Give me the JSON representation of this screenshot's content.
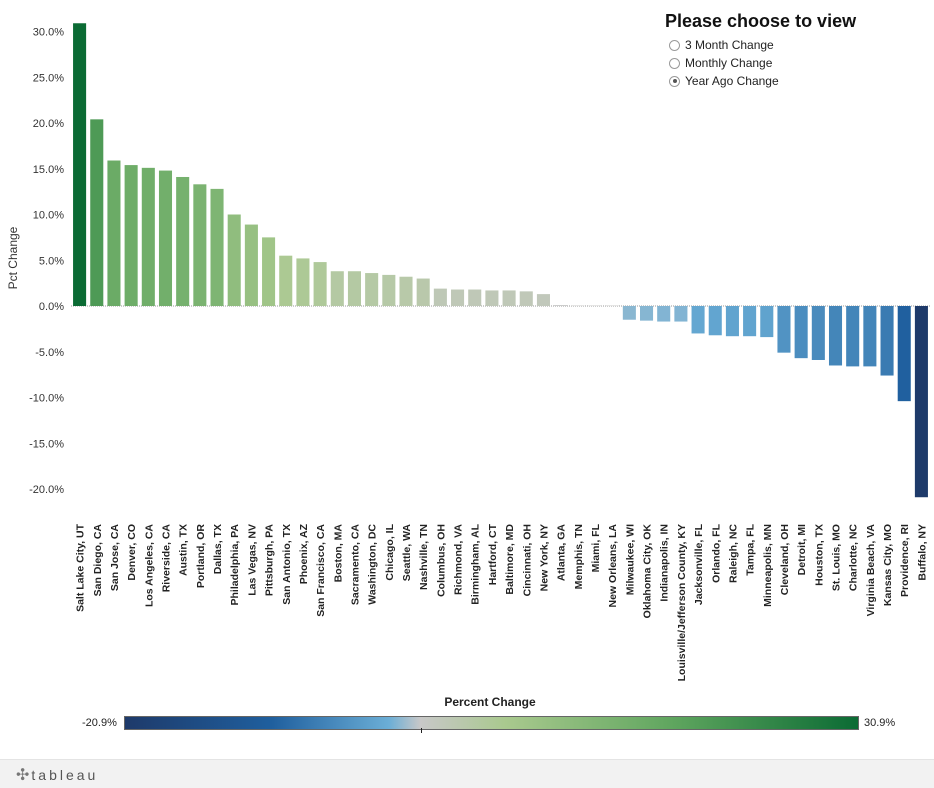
{
  "selector": {
    "title": "Please choose to view",
    "options": [
      {
        "label": "3 Month Change",
        "selected": false
      },
      {
        "label": "Monthly Change",
        "selected": false
      },
      {
        "label": "Year Ago Change",
        "selected": true
      }
    ]
  },
  "legend": {
    "title": "Percent Change",
    "min_label": "-20.9%",
    "max_label": "30.9%",
    "min_value": -20.9,
    "max_value": 30.9
  },
  "footer": {
    "logo_text": "tableau"
  },
  "chart_data": {
    "type": "bar",
    "title": "",
    "xlabel": "",
    "ylabel": "Pct Change",
    "ylim": [
      -23,
      31
    ],
    "yticks": [
      30,
      25,
      20,
      15,
      10,
      5,
      0,
      -5,
      -10,
      -15,
      -20
    ],
    "ytick_labels": [
      "30.0%",
      "25.0%",
      "20.0%",
      "15.0%",
      "10.0%",
      "5.0%",
      "0.0%",
      "-5.0%",
      "-10.0%",
      "-15.0%",
      "-20.0%"
    ],
    "categories": [
      "Salt Lake City, UT",
      "San Diego, CA",
      "San Jose, CA",
      "Denver, CO",
      "Los Angeles, CA",
      "Riverside, CA",
      "Austin, TX",
      "Portland, OR",
      "Dallas, TX",
      "Philadelphia, PA",
      "Las Vegas, NV",
      "Pittsburgh, PA",
      "San Antonio, TX",
      "Phoenix, AZ",
      "San Francisco, CA",
      "Boston, MA",
      "Sacramento, CA",
      "Washington, DC",
      "Chicago, IL",
      "Seattle, WA",
      "Nashville, TN",
      "Columbus, OH",
      "Richmond, VA",
      "Birmingham, AL",
      "Hartford, CT",
      "Baltimore, MD",
      "Cincinnati, OH",
      "New York, NY",
      "Atlanta, GA",
      "Memphis, TN",
      "Miami, FL",
      "New Orleans, LA",
      "Milwaukee, WI",
      "Oklahoma City, OK",
      "Indianapolis, IN",
      "Louisville/Jefferson County, KY",
      "Jacksonville, FL",
      "Orlando, FL",
      "Raleigh, NC",
      "Tampa, FL",
      "Minneapolis, MN",
      "Cleveland, OH",
      "Detroit, MI",
      "Houston, TX",
      "St. Louis, MO",
      "Charlotte, NC",
      "Virginia Beach, VA",
      "Kansas City, MO",
      "Providence, RI",
      "Buffalo, NY"
    ],
    "values": [
      30.9,
      20.4,
      15.9,
      15.4,
      15.1,
      14.8,
      14.1,
      13.3,
      12.8,
      10.0,
      8.9,
      7.5,
      5.5,
      5.2,
      4.8,
      3.8,
      3.8,
      3.6,
      3.4,
      3.2,
      3.0,
      1.9,
      1.8,
      1.8,
      1.7,
      1.7,
      1.6,
      1.3,
      0.1,
      0.05,
      0.05,
      0.05,
      -1.5,
      -1.6,
      -1.7,
      -1.7,
      -3.0,
      -3.2,
      -3.3,
      -3.3,
      -3.4,
      -5.1,
      -5.7,
      -5.9,
      -6.5,
      -6.6,
      -6.6,
      -7.6,
      -10.4,
      -20.9
    ]
  }
}
